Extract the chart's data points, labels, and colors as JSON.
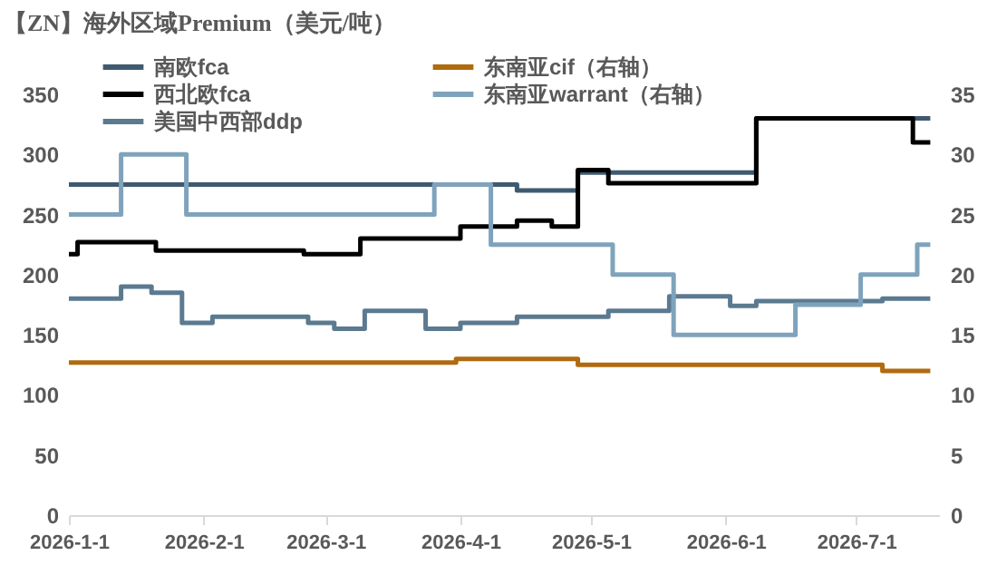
{
  "chart_data": {
    "type": "step",
    "title": "【ZN】海外区域Premium（美元/吨）",
    "xlim": [
      "2026-01-01",
      "2026-07-20"
    ],
    "xticks": [
      {
        "value": "2026-01-01",
        "label": "2026-1-1"
      },
      {
        "value": "2026-02-01",
        "label": "2026-2-1"
      },
      {
        "value": "2026-03-01",
        "label": "2026-3-1"
      },
      {
        "value": "2026-04-01",
        "label": "2026-4-1"
      },
      {
        "value": "2026-05-01",
        "label": "2026-5-1"
      },
      {
        "value": "2026-06-01",
        "label": "2026-6-1"
      },
      {
        "value": "2026-07-01",
        "label": "2026-7-1"
      }
    ],
    "ylim": [
      0,
      350
    ],
    "yticks": [
      0,
      50,
      100,
      150,
      200,
      250,
      300,
      350
    ],
    "y2lim": [
      0,
      35
    ],
    "y2ticks": [
      0,
      5,
      10,
      15,
      20,
      25,
      30,
      35
    ],
    "grid": false,
    "legend": "top",
    "marker": "none",
    "line_style": "solid",
    "series": [
      {
        "name": "南欧fca",
        "color": "#3f5a70",
        "x": [
          "2026-01-01",
          "2026-04-14",
          "2026-04-28",
          "2026-06-08",
          "2026-07-18"
        ],
        "values": [
          275,
          270,
          285,
          330,
          330
        ]
      },
      {
        "name": "东南亚cif（右轴）",
        "color": "#b06a10",
        "axis": "y2",
        "x": [
          "2026-01-01",
          "2026-03-31",
          "2026-04-28",
          "2026-07-07",
          "2026-07-18"
        ],
        "values": [
          12.7,
          13,
          12.5,
          12,
          12
        ]
      },
      {
        "name": "西北欧fca",
        "color": "#000000",
        "x": [
          "2026-01-01",
          "2026-01-03",
          "2026-01-21",
          "2026-02-24",
          "2026-03-09",
          "2026-04-01",
          "2026-04-14",
          "2026-04-22",
          "2026-04-28",
          "2026-05-05",
          "2026-06-08",
          "2026-07-14",
          "2026-07-18"
        ],
        "values": [
          217,
          227,
          220,
          217,
          230,
          240,
          245,
          240,
          287,
          276,
          330,
          310,
          310
        ]
      },
      {
        "name": "东南亚warrant（右轴）",
        "color": "#7fa3bc",
        "axis": "y2",
        "x": [
          "2026-01-01",
          "2026-01-13",
          "2026-01-28",
          "2026-03-26",
          "2026-04-08",
          "2026-05-06",
          "2026-05-20",
          "2026-06-17",
          "2026-07-02",
          "2026-07-15",
          "2026-07-18"
        ],
        "values": [
          25,
          30,
          25,
          27.5,
          22.5,
          20,
          15,
          17.5,
          20,
          22.5,
          22.5
        ]
      },
      {
        "name": "美国中西部ddp",
        "color": "#5b7a90",
        "x": [
          "2026-01-01",
          "2026-01-13",
          "2026-01-20",
          "2026-01-27",
          "2026-02-03",
          "2026-02-25",
          "2026-03-03",
          "2026-03-10",
          "2026-03-24",
          "2026-04-01",
          "2026-04-14",
          "2026-05-05",
          "2026-05-19",
          "2026-06-02",
          "2026-06-08",
          "2026-07-07",
          "2026-07-18"
        ],
        "values": [
          180,
          190,
          185,
          160,
          165,
          160,
          155,
          170,
          155,
          160,
          165,
          170,
          182,
          174,
          178,
          180,
          180
        ]
      }
    ]
  }
}
